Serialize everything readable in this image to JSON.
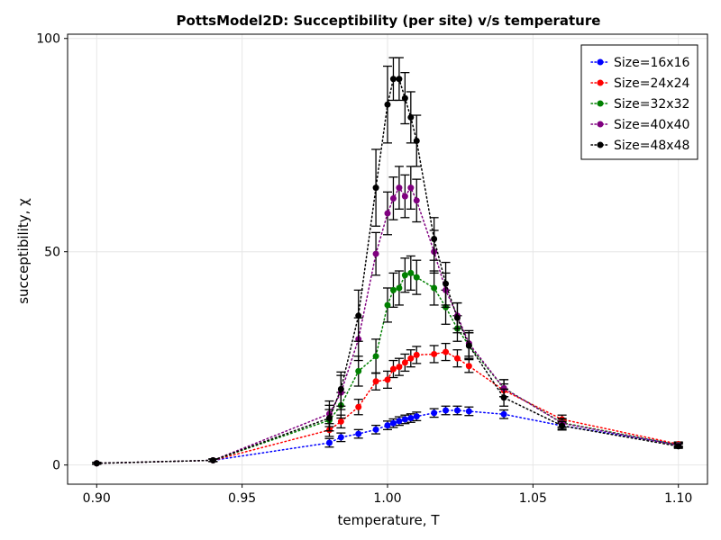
{
  "chart_data": {
    "type": "scatter",
    "title": "PottsModel2D: Succeptibility (per site) v/s temperature",
    "xlabel": "temperature, T",
    "ylabel": "succeptibility, χ",
    "xlim": [
      0.89,
      1.11
    ],
    "ylim": [
      -4.5,
      101
    ],
    "xticks": [
      0.9,
      0.95,
      1.0,
      1.05,
      1.1
    ],
    "xtick_labels": [
      "0.90",
      "0.95",
      "1.00",
      "1.05",
      "1.10"
    ],
    "yticks": [
      0,
      50,
      100
    ],
    "ytick_labels": [
      "0",
      "50",
      "100"
    ],
    "grid": true,
    "legend_position": "top-right",
    "line_style": "dotted",
    "series": [
      {
        "name": "Size=16x16",
        "color": "#0000ff",
        "points": [
          {
            "x": 0.9,
            "y": 0.4,
            "err": 0.2
          },
          {
            "x": 0.94,
            "y": 1.1,
            "err": 0.3
          },
          {
            "x": 0.98,
            "y": 5.2,
            "err": 1.0
          },
          {
            "x": 0.984,
            "y": 6.5,
            "err": 1.0
          },
          {
            "x": 0.99,
            "y": 7.3,
            "err": 1.0
          },
          {
            "x": 0.996,
            "y": 8.3,
            "err": 1.0
          },
          {
            "x": 1.0,
            "y": 9.3,
            "err": 1.0
          },
          {
            "x": 1.002,
            "y": 9.8,
            "err": 1.0
          },
          {
            "x": 1.004,
            "y": 10.3,
            "err": 1.0
          },
          {
            "x": 1.006,
            "y": 10.7,
            "err": 1.0
          },
          {
            "x": 1.008,
            "y": 11.0,
            "err": 1.0
          },
          {
            "x": 1.01,
            "y": 11.4,
            "err": 1.0
          },
          {
            "x": 1.016,
            "y": 12.2,
            "err": 1.0
          },
          {
            "x": 1.02,
            "y": 12.8,
            "err": 1.0
          },
          {
            "x": 1.024,
            "y": 12.8,
            "err": 1.0
          },
          {
            "x": 1.028,
            "y": 12.6,
            "err": 1.0
          },
          {
            "x": 1.04,
            "y": 11.9,
            "err": 1.0
          },
          {
            "x": 1.06,
            "y": 9.2,
            "err": 0.8
          },
          {
            "x": 1.1,
            "y": 4.8,
            "err": 0.5
          }
        ]
      },
      {
        "name": "Size=24x24",
        "color": "#ff0000",
        "points": [
          {
            "x": 0.9,
            "y": 0.4,
            "err": 0.2
          },
          {
            "x": 0.94,
            "y": 1.1,
            "err": 0.3
          },
          {
            "x": 0.98,
            "y": 8.2,
            "err": 1.5
          },
          {
            "x": 0.984,
            "y": 10.2,
            "err": 1.5
          },
          {
            "x": 0.99,
            "y": 13.6,
            "err": 1.8
          },
          {
            "x": 0.996,
            "y": 19.6,
            "err": 2.0
          },
          {
            "x": 1.0,
            "y": 20.0,
            "err": 2.0
          },
          {
            "x": 1.002,
            "y": 22.5,
            "err": 2.0
          },
          {
            "x": 1.004,
            "y": 23.0,
            "err": 2.0
          },
          {
            "x": 1.006,
            "y": 24.0,
            "err": 2.0
          },
          {
            "x": 1.008,
            "y": 25.0,
            "err": 2.0
          },
          {
            "x": 1.01,
            "y": 25.8,
            "err": 2.0
          },
          {
            "x": 1.016,
            "y": 26.0,
            "err": 2.0
          },
          {
            "x": 1.02,
            "y": 26.5,
            "err": 2.0
          },
          {
            "x": 1.024,
            "y": 25.0,
            "err": 2.0
          },
          {
            "x": 1.028,
            "y": 23.2,
            "err": 1.5
          },
          {
            "x": 1.04,
            "y": 17.5,
            "err": 1.5
          },
          {
            "x": 1.06,
            "y": 10.7,
            "err": 1.0
          },
          {
            "x": 1.1,
            "y": 4.9,
            "err": 0.5
          }
        ]
      },
      {
        "name": "Size=32x32",
        "color": "#008000",
        "points": [
          {
            "x": 0.9,
            "y": 0.4,
            "err": 0.2
          },
          {
            "x": 0.94,
            "y": 1.1,
            "err": 0.3
          },
          {
            "x": 0.98,
            "y": 10.5,
            "err": 2.5
          },
          {
            "x": 0.984,
            "y": 14.0,
            "err": 3.0
          },
          {
            "x": 0.99,
            "y": 22.0,
            "err": 3.5
          },
          {
            "x": 0.996,
            "y": 25.5,
            "err": 4.0
          },
          {
            "x": 1.0,
            "y": 37.5,
            "err": 4.0
          },
          {
            "x": 1.002,
            "y": 41.0,
            "err": 4.0
          },
          {
            "x": 1.004,
            "y": 41.5,
            "err": 4.0
          },
          {
            "x": 1.006,
            "y": 44.5,
            "err": 4.0
          },
          {
            "x": 1.008,
            "y": 45.0,
            "err": 4.0
          },
          {
            "x": 1.01,
            "y": 44.0,
            "err": 4.0
          },
          {
            "x": 1.016,
            "y": 41.5,
            "err": 4.0
          },
          {
            "x": 1.02,
            "y": 37.0,
            "err": 4.0
          },
          {
            "x": 1.024,
            "y": 32.0,
            "err": 3.0
          },
          {
            "x": 1.028,
            "y": 28.0,
            "err": 3.0
          },
          {
            "x": 1.04,
            "y": 18.0,
            "err": 2.0
          },
          {
            "x": 1.06,
            "y": 9.9,
            "err": 1.0
          },
          {
            "x": 1.1,
            "y": 4.7,
            "err": 0.5
          }
        ]
      },
      {
        "name": "Size=40x40",
        "color": "#800080",
        "points": [
          {
            "x": 0.9,
            "y": 0.4,
            "err": 0.2
          },
          {
            "x": 0.94,
            "y": 1.1,
            "err": 0.3
          },
          {
            "x": 0.98,
            "y": 12.0,
            "err": 3.0
          },
          {
            "x": 0.984,
            "y": 17.0,
            "err": 4.0
          },
          {
            "x": 0.99,
            "y": 29.5,
            "err": 5.0
          },
          {
            "x": 0.996,
            "y": 49.5,
            "err": 5.0
          },
          {
            "x": 1.0,
            "y": 59.0,
            "err": 5.0
          },
          {
            "x": 1.002,
            "y": 62.5,
            "err": 5.0
          },
          {
            "x": 1.004,
            "y": 65.0,
            "err": 5.0
          },
          {
            "x": 1.006,
            "y": 63.0,
            "err": 5.0
          },
          {
            "x": 1.008,
            "y": 65.0,
            "err": 5.0
          },
          {
            "x": 1.01,
            "y": 62.0,
            "err": 5.0
          },
          {
            "x": 1.016,
            "y": 50.0,
            "err": 5.0
          },
          {
            "x": 1.02,
            "y": 41.0,
            "err": 4.0
          },
          {
            "x": 1.024,
            "y": 35.0,
            "err": 3.0
          },
          {
            "x": 1.028,
            "y": 28.5,
            "err": 3.0
          },
          {
            "x": 1.04,
            "y": 18.0,
            "err": 2.0
          },
          {
            "x": 1.06,
            "y": 9.8,
            "err": 1.0
          },
          {
            "x": 1.1,
            "y": 4.6,
            "err": 0.5
          }
        ]
      },
      {
        "name": "Size=48x48",
        "color": "#000000",
        "points": [
          {
            "x": 0.9,
            "y": 0.4,
            "err": 0.2
          },
          {
            "x": 0.94,
            "y": 1.1,
            "err": 0.3
          },
          {
            "x": 0.98,
            "y": 11.0,
            "err": 3.0
          },
          {
            "x": 0.984,
            "y": 17.8,
            "err": 4.0
          },
          {
            "x": 0.99,
            "y": 35.0,
            "err": 6.0
          },
          {
            "x": 0.996,
            "y": 65.0,
            "err": 9.0
          },
          {
            "x": 1.0,
            "y": 84.5,
            "err": 9.0
          },
          {
            "x": 1.002,
            "y": 90.5,
            "err": 5.0
          },
          {
            "x": 1.004,
            "y": 90.5,
            "err": 5.0
          },
          {
            "x": 1.006,
            "y": 86.0,
            "err": 6.0
          },
          {
            "x": 1.008,
            "y": 81.5,
            "err": 6.0
          },
          {
            "x": 1.01,
            "y": 76.0,
            "err": 6.0
          },
          {
            "x": 1.016,
            "y": 53.0,
            "err": 5.0
          },
          {
            "x": 1.02,
            "y": 42.5,
            "err": 5.0
          },
          {
            "x": 1.024,
            "y": 34.5,
            "err": 3.5
          },
          {
            "x": 1.028,
            "y": 28.0,
            "err": 3.0
          },
          {
            "x": 1.04,
            "y": 15.8,
            "err": 2.0
          },
          {
            "x": 1.06,
            "y": 9.2,
            "err": 1.0
          },
          {
            "x": 1.1,
            "y": 4.4,
            "err": 0.5
          }
        ]
      }
    ]
  }
}
